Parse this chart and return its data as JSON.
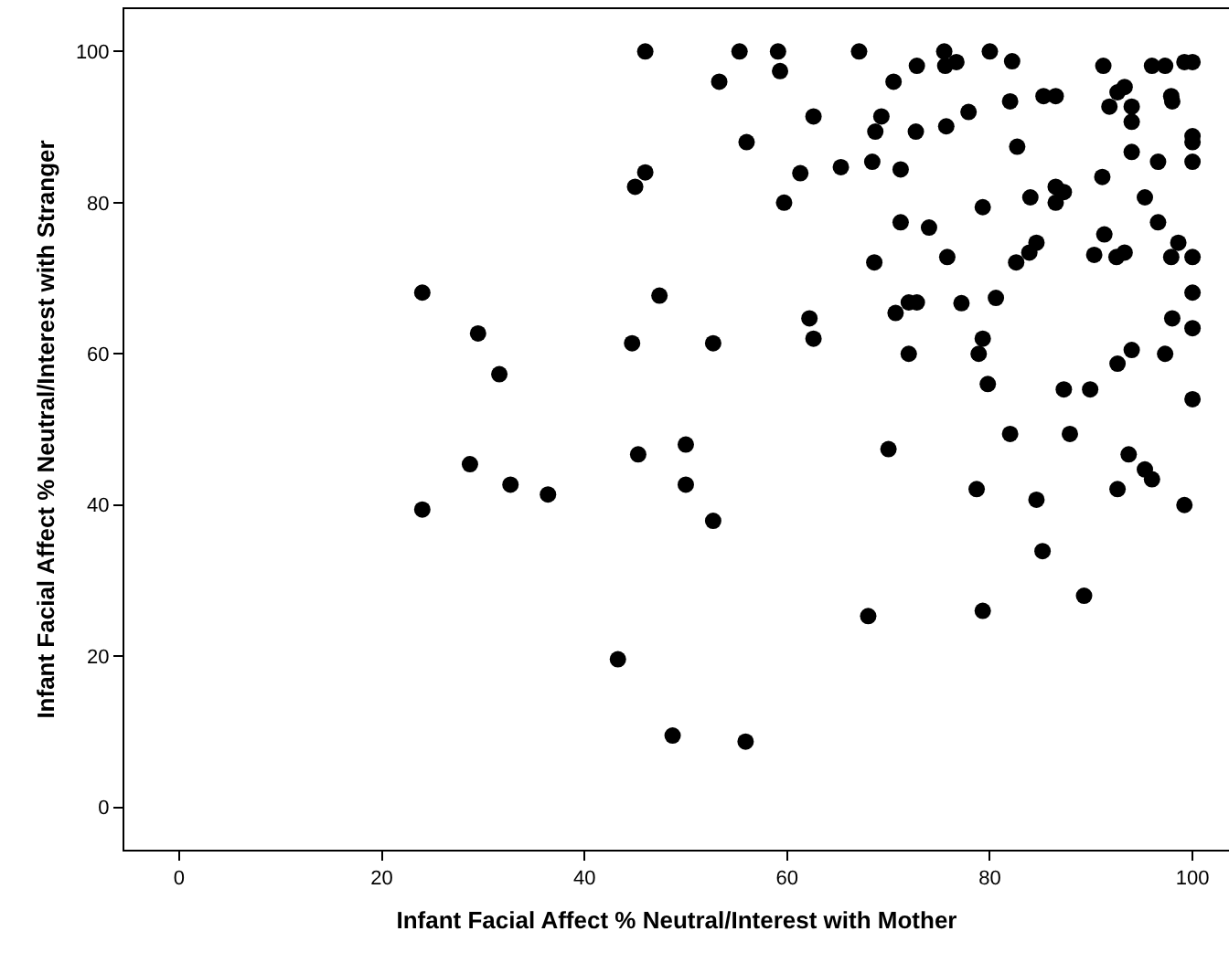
{
  "chart_data": {
    "type": "scatter",
    "xlabel": "Infant Facial Affect % Neutral/Interest with Mother",
    "ylabel": "Infant Facial Affect % Neutral/Interest with Stranger",
    "xlim": [
      -5.4,
      103.6
    ],
    "ylim": [
      -5.6,
      105.6
    ],
    "xticks": [
      0,
      20,
      40,
      60,
      80,
      100
    ],
    "yticks": [
      0,
      20,
      40,
      60,
      80,
      100
    ],
    "marker": "circle",
    "series": [
      {
        "color": "#000000",
        "x": [
          46.0,
          55.3,
          59.1,
          67.1,
          75.5,
          80.0,
          82.2,
          75.6,
          76.7,
          72.8,
          91.2,
          96.0,
          97.3,
          99.2,
          100,
          59.3,
          53.3,
          70.5,
          92.6,
          93.3,
          85.3,
          86.5,
          97.9,
          98.0,
          82.0,
          91.8,
          94.0,
          94.0,
          77.9,
          62.6,
          69.3,
          75.7,
          68.7,
          72.7,
          100,
          100,
          56.0,
          82.7,
          94.0,
          96.6,
          100,
          68.4,
          65.3,
          71.2,
          46.0,
          45.0,
          61.3,
          91.1,
          86.5,
          87.3,
          86.5,
          84.0,
          95.3,
          59.7,
          79.3,
          96.6,
          71.2,
          74.0,
          91.3,
          84.6,
          98.6,
          83.9,
          90.3,
          92.5,
          93.3,
          97.9,
          100,
          75.8,
          82.6,
          68.6,
          24.0,
          47.4,
          100,
          72.0,
          72.8,
          77.2,
          80.6,
          70.7,
          62.2,
          98.0,
          100,
          29.5,
          62.6,
          79.3,
          44.7,
          52.7,
          94.0,
          78.9,
          72.0,
          97.3,
          92.6,
          31.6,
          79.8,
          87.3,
          89.9,
          100,
          50.0,
          82.0,
          87.9,
          45.3,
          70.0,
          93.7,
          95.3,
          96.0,
          28.7,
          32.7,
          50.0,
          36.4,
          78.7,
          84.6,
          92.6,
          99.2,
          24.0,
          52.7,
          85.2,
          89.3,
          68.0,
          79.3,
          43.3,
          48.7,
          55.9
        ],
        "values": [
          100,
          100,
          100,
          100,
          100,
          100,
          98.7,
          98.1,
          98.6,
          98.1,
          98.1,
          98.1,
          98.1,
          98.6,
          98.6,
          97.4,
          96.0,
          96.0,
          94.6,
          95.3,
          94.1,
          94.1,
          94.1,
          93.4,
          93.4,
          92.7,
          92.7,
          90.7,
          92.0,
          91.4,
          91.4,
          90.1,
          89.4,
          89.4,
          88.8,
          88.0,
          88.0,
          87.4,
          86.7,
          85.4,
          85.4,
          85.4,
          84.7,
          84.4,
          84.0,
          82.1,
          83.9,
          83.4,
          82.1,
          81.4,
          80.0,
          80.7,
          80.7,
          80.0,
          79.4,
          77.4,
          77.4,
          76.7,
          75.8,
          74.7,
          74.7,
          73.4,
          73.1,
          72.8,
          73.4,
          72.8,
          72.8,
          72.8,
          72.1,
          72.1,
          68.1,
          67.7,
          68.1,
          66.8,
          66.8,
          66.7,
          67.4,
          65.4,
          64.7,
          64.7,
          63.4,
          62.7,
          62.0,
          62.0,
          61.4,
          61.4,
          60.5,
          60.0,
          60.0,
          60.0,
          58.7,
          57.3,
          56.0,
          55.3,
          55.3,
          54.0,
          48.0,
          49.4,
          49.4,
          46.7,
          47.4,
          46.7,
          44.7,
          43.4,
          45.4,
          42.7,
          42.7,
          41.4,
          42.1,
          40.7,
          42.1,
          40.0,
          39.4,
          37.9,
          33.9,
          28.0,
          25.3,
          26.0,
          19.6,
          9.5,
          8.7
        ]
      }
    ]
  }
}
